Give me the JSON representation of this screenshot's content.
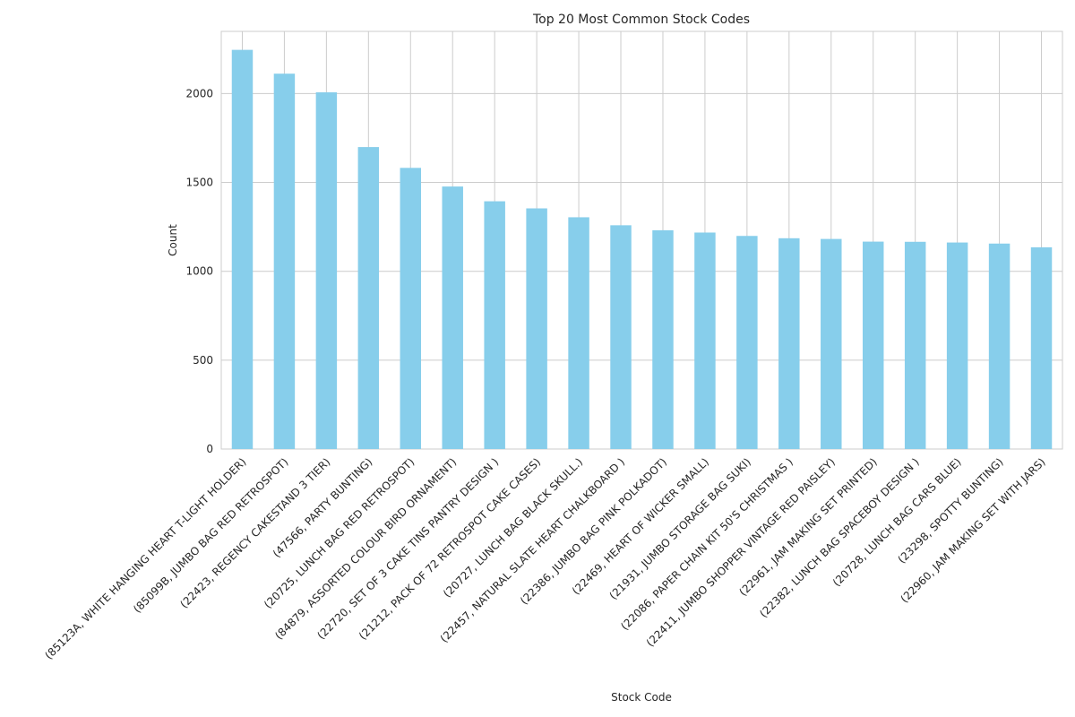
{
  "chart_data": {
    "type": "bar",
    "title": "Top 20 Most Common Stock Codes",
    "xlabel": "Stock Code",
    "ylabel": "Count",
    "ylim": [
      0,
      2350
    ],
    "yticks": [
      0,
      500,
      1000,
      1500,
      2000
    ],
    "grid": true,
    "bar_color": "#87ceeb",
    "categories": [
      "(85123A, WHITE HANGING HEART T-LIGHT HOLDER)",
      "(85099B, JUMBO BAG RED RETROSPOT)",
      "(22423, REGENCY CAKESTAND 3 TIER)",
      "(47566, PARTY BUNTING)",
      "(20725, LUNCH BAG RED RETROSPOT)",
      "(84879, ASSORTED COLOUR BIRD ORNAMENT)",
      "(22720, SET OF 3 CAKE TINS PANTRY DESIGN )",
      "(21212, PACK OF 72 RETROSPOT CAKE CASES)",
      "(20727, LUNCH BAG  BLACK SKULL.)",
      "(22457, NATURAL SLATE HEART CHALKBOARD )",
      "(22386, JUMBO BAG PINK POLKADOT)",
      "(22469, HEART OF WICKER SMALL)",
      "(21931, JUMBO STORAGE BAG SUKI)",
      "(22086, PAPER CHAIN KIT 50'S CHRISTMAS )",
      "(22411, JUMBO SHOPPER VINTAGE RED PAISLEY)",
      "(22961, JAM MAKING SET PRINTED)",
      "(22382, LUNCH BAG SPACEBOY DESIGN )",
      "(20728, LUNCH BAG CARS BLUE)",
      "(23298, SPOTTY BUNTING)",
      "(22960, JAM MAKING SET WITH JARS)"
    ],
    "values": [
      2246,
      2112,
      2007,
      1699,
      1582,
      1477,
      1394,
      1354,
      1304,
      1259,
      1231,
      1218,
      1199,
      1186,
      1182,
      1167,
      1166,
      1162,
      1156,
      1135
    ]
  }
}
